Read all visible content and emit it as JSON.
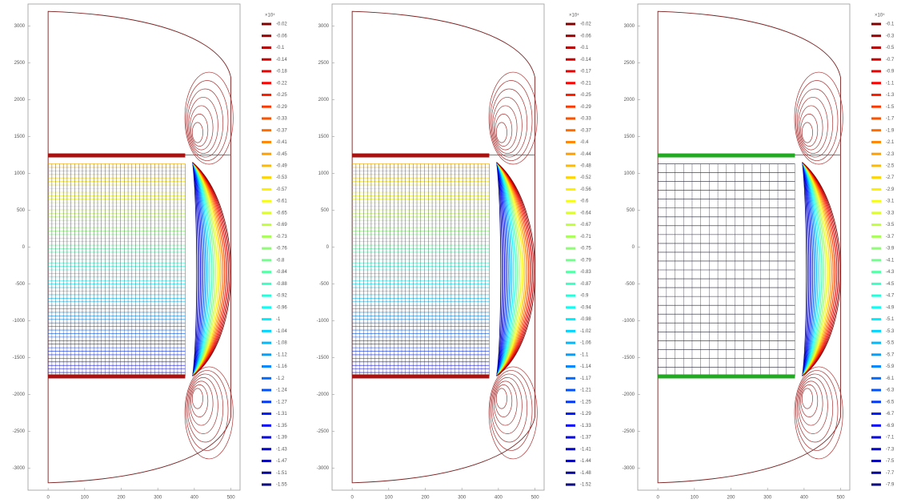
{
  "chart_data": [
    {
      "type": "contour",
      "colormap": "jet",
      "colorbar_title": "×10⁴",
      "xlim": [
        -55,
        525
      ],
      "ylim": [
        -3300,
        3300
      ],
      "xticks": [
        0,
        100,
        200,
        300,
        400,
        500
      ],
      "yticks": [
        3000,
        2500,
        2000,
        1500,
        1000,
        500,
        0,
        -500,
        -1000,
        -1500,
        -2000,
        -2500,
        -3000
      ],
      "levels": [
        -0.02,
        -0.06,
        -0.1,
        -0.14,
        -0.18,
        -0.22,
        -0.25,
        -0.29,
        -0.33,
        -0.37,
        -0.41,
        -0.45,
        -0.49,
        -0.53,
        -0.57,
        -0.61,
        -0.65,
        -0.69,
        -0.73,
        -0.76,
        -0.8,
        -0.84,
        -0.88,
        -0.92,
        -0.96,
        -1,
        -1.04,
        -1.08,
        -1.12,
        -1.16,
        -1.2,
        -1.24,
        -1.27,
        -1.31,
        -1.35,
        -1.39,
        -1.43,
        -1.47,
        -1.51,
        -1.55
      ]
    },
    {
      "type": "contour",
      "colormap": "jet",
      "colorbar_title": "×10⁴",
      "xlim": [
        -55,
        525
      ],
      "ylim": [
        -3300,
        3300
      ],
      "xticks": [
        0,
        100,
        200,
        300,
        400,
        500
      ],
      "yticks": [
        3000,
        2500,
        2000,
        1500,
        1000,
        500,
        0,
        -500,
        -1000,
        -1500,
        -2000,
        -2500,
        -3000
      ],
      "levels": [
        -0.02,
        -0.06,
        -0.1,
        -0.14,
        -0.17,
        -0.21,
        -0.25,
        -0.29,
        -0.33,
        -0.37,
        -0.4,
        -0.44,
        -0.48,
        -0.52,
        -0.56,
        -0.6,
        -0.64,
        -0.67,
        -0.71,
        -0.75,
        -0.79,
        -0.83,
        -0.87,
        -0.9,
        -0.94,
        -0.98,
        -1.02,
        -1.06,
        -1.1,
        -1.14,
        -1.17,
        -1.21,
        -1.25,
        -1.29,
        -1.33,
        -1.37,
        -1.41,
        -1.44,
        -1.48,
        -1.52
      ]
    },
    {
      "type": "contour",
      "colormap": "jet",
      "colorbar_title": "×10⁴",
      "xlim": [
        -55,
        525
      ],
      "ylim": [
        -3300,
        3300
      ],
      "xticks": [
        0,
        100,
        200,
        300,
        400,
        500
      ],
      "yticks": [
        3000,
        2500,
        2000,
        1500,
        1000,
        500,
        0,
        -500,
        -1000,
        -1500,
        -2000,
        -2500,
        -3000
      ],
      "levels": [
        -0.1,
        -0.3,
        -0.5,
        -0.7,
        -0.9,
        -1.1,
        -1.3,
        -1.5,
        -1.7,
        -1.9,
        -2.1,
        -2.3,
        -2.5,
        -2.7,
        -2.9,
        -3.1,
        -3.3,
        -3.5,
        -3.7,
        -3.9,
        -4.1,
        -4.3,
        -4.5,
        -4.7,
        -4.9,
        -5.1,
        -5.3,
        -5.5,
        -5.7,
        -5.9,
        -6.1,
        -6.3,
        -6.5,
        -6.7,
        -6.9,
        -7.1,
        -7.3,
        -7.5,
        -7.7,
        -7.9
      ]
    }
  ]
}
